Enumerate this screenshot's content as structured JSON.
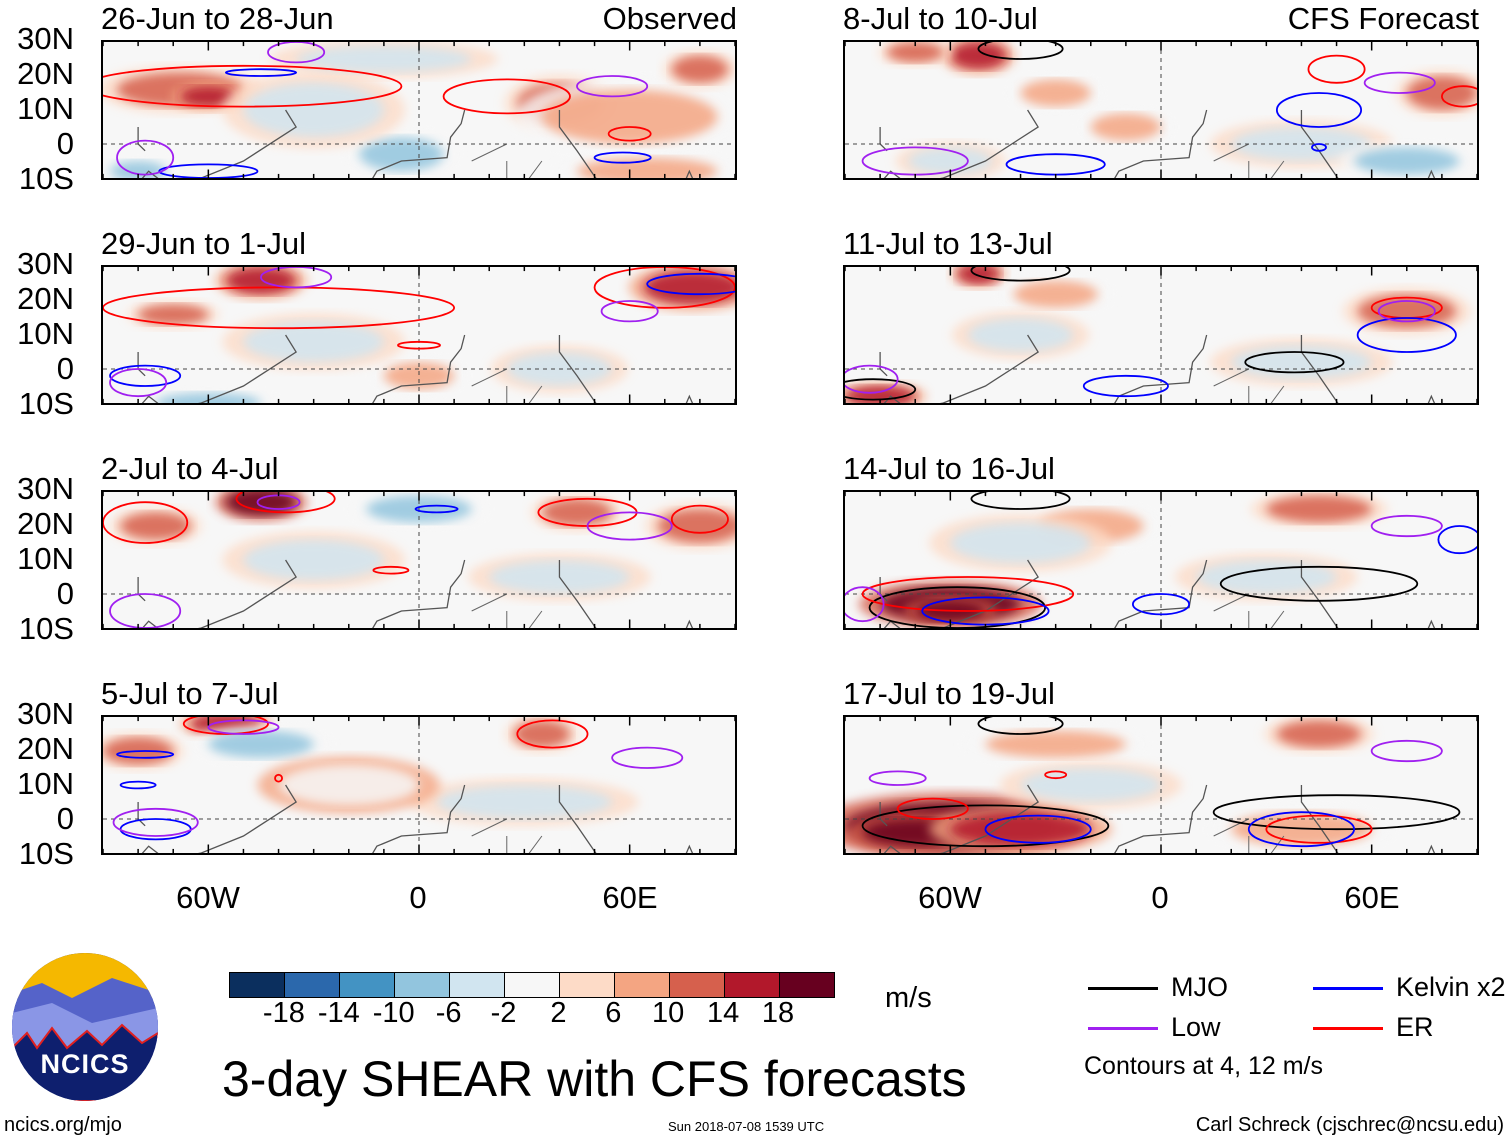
{
  "chart_data": {
    "type": "heatmap",
    "title": "3-day SHEAR with CFS forecasts",
    "units": "m/s",
    "lat_ticks": [
      "30N",
      "20N",
      "10N",
      "0",
      "10S"
    ],
    "lon_ticks": [
      "60W",
      "0",
      "60E"
    ],
    "lon_range": [
      -90,
      90
    ],
    "lat_range": [
      -10,
      30
    ],
    "colorbar": {
      "ticks": [
        "-18",
        "-14",
        "-10",
        "-6",
        "-2",
        "2",
        "6",
        "10",
        "14",
        "18"
      ],
      "colors": [
        "#0b2f5e",
        "#2b68ac",
        "#4393c3",
        "#92c5de",
        "#d1e5f0",
        "#f7f7f7",
        "#fddbc7",
        "#f4a582",
        "#d6604d",
        "#b2182b",
        "#67001f"
      ]
    },
    "legend": [
      {
        "label": "MJO",
        "color": "#000000"
      },
      {
        "label": "Kelvin x2",
        "color": "#0000ff"
      },
      {
        "label": "Low",
        "color": "#a020f0"
      },
      {
        "label": "ER",
        "color": "#ff0000"
      }
    ],
    "contour_note": "Contours at 4, 12 m/s",
    "panels": [
      {
        "title": "26-Jun to 28-Jun",
        "tag": "Observed",
        "shading": [
          [
            -68,
            16,
            18,
            5,
            10
          ],
          [
            -60,
            14,
            8,
            3,
            14
          ],
          [
            40,
            12,
            12,
            6,
            10
          ],
          [
            60,
            8,
            25,
            8,
            6
          ],
          [
            80,
            22,
            8,
            4,
            10
          ],
          [
            -5,
            -3,
            12,
            5,
            -10
          ],
          [
            -30,
            10,
            20,
            8,
            -6
          ],
          [
            -80,
            -8,
            8,
            3,
            -10
          ],
          [
            65,
            -8,
            20,
            4,
            6
          ],
          [
            -10,
            25,
            25,
            4,
            -6
          ]
        ],
        "contours": [
          [
            "er",
            -50,
            17,
            45,
            6
          ],
          [
            "er",
            25,
            14,
            18,
            5
          ],
          [
            "er",
            60,
            3,
            6,
            2
          ],
          [
            "kelvin",
            -45,
            21,
            10,
            1
          ],
          [
            "kelvin",
            -60,
            -8,
            14,
            2
          ],
          [
            "kelvin",
            58,
            -4,
            8,
            1.5
          ],
          [
            "low",
            -35,
            27,
            8,
            3
          ],
          [
            "low",
            55,
            17,
            10,
            3
          ],
          [
            "low",
            -78,
            -4,
            8,
            5
          ]
        ]
      },
      {
        "title": "8-Jul to 10-Jul",
        "tag": "CFS Forecast",
        "shading": [
          [
            -52,
            26,
            8,
            4,
            14
          ],
          [
            -70,
            27,
            8,
            3,
            10
          ],
          [
            -30,
            15,
            10,
            4,
            6
          ],
          [
            -10,
            5,
            10,
            4,
            6
          ],
          [
            80,
            15,
            10,
            5,
            10
          ],
          [
            -60,
            -5,
            12,
            4,
            -6
          ],
          [
            40,
            0,
            20,
            5,
            -6
          ],
          [
            70,
            -5,
            15,
            4,
            -10
          ]
        ],
        "contours": [
          [
            "mjo",
            -40,
            28,
            12,
            3
          ],
          [
            "er",
            50,
            22,
            8,
            4
          ],
          [
            "er",
            86,
            14,
            6,
            3
          ],
          [
            "kelvin",
            45,
            10,
            12,
            5
          ],
          [
            "kelvin",
            45,
            -1,
            2,
            1
          ],
          [
            "low",
            -70,
            -5,
            15,
            4
          ],
          [
            "low",
            68,
            18,
            10,
            3
          ],
          [
            "kelvin",
            -30,
            -6,
            14,
            3
          ]
        ]
      },
      {
        "title": "29-Jun to 1-Jul",
        "tag": "",
        "shading": [
          [
            -45,
            26,
            10,
            4,
            14
          ],
          [
            78,
            24,
            14,
            5,
            14
          ],
          [
            -70,
            16,
            10,
            3,
            10
          ],
          [
            0,
            -2,
            10,
            4,
            6
          ],
          [
            -60,
            -10,
            15,
            3,
            -10
          ],
          [
            40,
            0,
            15,
            5,
            -6
          ],
          [
            -30,
            8,
            20,
            6,
            -6
          ]
        ],
        "contours": [
          [
            "er",
            -40,
            18,
            50,
            6
          ],
          [
            "er",
            70,
            24,
            20,
            6
          ],
          [
            "er",
            0,
            7,
            6,
            1
          ],
          [
            "kelvin",
            -78,
            -2,
            10,
            3
          ],
          [
            "kelvin",
            80,
            25,
            15,
            3
          ],
          [
            "low",
            -35,
            27,
            10,
            3
          ],
          [
            "low",
            60,
            17,
            8,
            3
          ],
          [
            "low",
            -80,
            -4,
            8,
            4
          ]
        ]
      },
      {
        "title": "11-Jul to 13-Jul",
        "tag": "",
        "shading": [
          [
            -52,
            28,
            6,
            3,
            14
          ],
          [
            -30,
            22,
            12,
            4,
            6
          ],
          [
            70,
            17,
            14,
            5,
            10
          ],
          [
            -80,
            -8,
            10,
            3,
            14
          ],
          [
            -40,
            10,
            15,
            5,
            -6
          ],
          [
            40,
            2,
            20,
            5,
            -6
          ]
        ],
        "contours": [
          [
            "mjo",
            -40,
            29,
            14,
            3
          ],
          [
            "mjo",
            38,
            2,
            14,
            3
          ],
          [
            "mjo",
            -82,
            -6,
            12,
            3
          ],
          [
            "er",
            70,
            18,
            10,
            3
          ],
          [
            "kelvin",
            70,
            10,
            14,
            5
          ],
          [
            "kelvin",
            -10,
            -5,
            12,
            3
          ],
          [
            "low",
            -83,
            -3,
            8,
            4
          ],
          [
            "low",
            70,
            17,
            8,
            3
          ]
        ]
      },
      {
        "title": "2-Jul to 4-Jul",
        "tag": "",
        "shading": [
          [
            -45,
            27,
            10,
            4,
            18
          ],
          [
            45,
            24,
            10,
            4,
            10
          ],
          [
            80,
            20,
            12,
            5,
            10
          ],
          [
            -75,
            20,
            10,
            4,
            10
          ],
          [
            -30,
            10,
            20,
            6,
            -6
          ],
          [
            0,
            25,
            15,
            4,
            -10
          ],
          [
            40,
            5,
            20,
            5,
            -6
          ]
        ],
        "contours": [
          [
            "er",
            -38,
            28,
            14,
            4
          ],
          [
            "er",
            48,
            24,
            14,
            4
          ],
          [
            "er",
            -78,
            21,
            12,
            6
          ],
          [
            "er",
            80,
            22,
            8,
            4
          ],
          [
            "er",
            -8,
            7,
            5,
            1
          ],
          [
            "kelvin",
            5,
            25,
            6,
            1
          ],
          [
            "low",
            60,
            20,
            12,
            4
          ],
          [
            "low",
            -78,
            -5,
            10,
            5
          ],
          [
            "low",
            -40,
            27,
            6,
            2
          ]
        ]
      },
      {
        "title": "14-Jul to 16-Jul",
        "tag": "",
        "shading": [
          [
            -60,
            -3,
            20,
            5,
            18
          ],
          [
            -60,
            -5,
            10,
            3,
            18
          ],
          [
            -20,
            20,
            15,
            5,
            6
          ],
          [
            45,
            25,
            15,
            4,
            10
          ],
          [
            -40,
            15,
            20,
            6,
            -6
          ],
          [
            30,
            5,
            20,
            5,
            -6
          ]
        ],
        "contours": [
          [
            "mjo",
            -58,
            -4,
            25,
            6
          ],
          [
            "mjo",
            45,
            3,
            28,
            5
          ],
          [
            "mjo",
            -40,
            28,
            14,
            3
          ],
          [
            "er",
            -55,
            0,
            30,
            5
          ],
          [
            "kelvin",
            0,
            -3,
            8,
            3
          ],
          [
            "kelvin",
            -50,
            -5,
            18,
            4
          ],
          [
            "low",
            70,
            20,
            10,
            3
          ],
          [
            "low",
            -85,
            -3,
            6,
            5
          ],
          [
            "kelvin",
            85,
            16,
            6,
            4
          ]
        ]
      },
      {
        "title": "5-Jul to 7-Jul",
        "tag": "",
        "shading": [
          [
            -55,
            28,
            10,
            3,
            14
          ],
          [
            -80,
            20,
            10,
            4,
            10
          ],
          [
            -45,
            22,
            15,
            4,
            -10
          ],
          [
            35,
            25,
            8,
            4,
            10
          ],
          [
            30,
            5,
            25,
            5,
            -6
          ],
          [
            -20,
            10,
            20,
            6,
            -2
          ]
        ],
        "contours": [
          [
            "er",
            -55,
            28,
            12,
            3
          ],
          [
            "er",
            38,
            25,
            10,
            4
          ],
          [
            "er",
            -40,
            12,
            1,
            1
          ],
          [
            "kelvin",
            -75,
            -3,
            10,
            3
          ],
          [
            "kelvin",
            -78,
            19,
            8,
            1
          ],
          [
            "kelvin",
            -80,
            10,
            5,
            1
          ],
          [
            "low",
            -75,
            -1,
            12,
            4
          ],
          [
            "low",
            -50,
            27,
            10,
            2
          ],
          [
            "low",
            65,
            18,
            10,
            3
          ]
        ]
      },
      {
        "title": "17-Jul to 19-Jul",
        "tag": "",
        "shading": [
          [
            -60,
            -2,
            30,
            7,
            18
          ],
          [
            -70,
            -4,
            15,
            4,
            18
          ],
          [
            -40,
            -3,
            20,
            5,
            14
          ],
          [
            45,
            25,
            12,
            4,
            10
          ],
          [
            40,
            -3,
            20,
            5,
            6
          ],
          [
            -30,
            22,
            20,
            4,
            6
          ],
          [
            -20,
            10,
            20,
            5,
            -6
          ]
        ],
        "contours": [
          [
            "mjo",
            -50,
            -2,
            35,
            6
          ],
          [
            "mjo",
            50,
            2,
            35,
            5
          ],
          [
            "mjo",
            -40,
            28,
            12,
            3
          ],
          [
            "er",
            -65,
            3,
            10,
            3
          ],
          [
            "er",
            45,
            -3,
            15,
            4
          ],
          [
            "er",
            -30,
            13,
            3,
            1
          ],
          [
            "kelvin",
            40,
            -3,
            15,
            5
          ],
          [
            "kelvin",
            -35,
            -3,
            15,
            4
          ],
          [
            "low",
            70,
            20,
            10,
            3
          ],
          [
            "low",
            -75,
            12,
            8,
            2
          ]
        ]
      }
    ]
  },
  "footer": {
    "logo_text": "NCICS",
    "url": "ncics.org/mjo",
    "timestamp": "Sun 2018-07-08 1539 UTC",
    "credit": "Carl Schreck (cjschrec@ncsu.edu)"
  }
}
